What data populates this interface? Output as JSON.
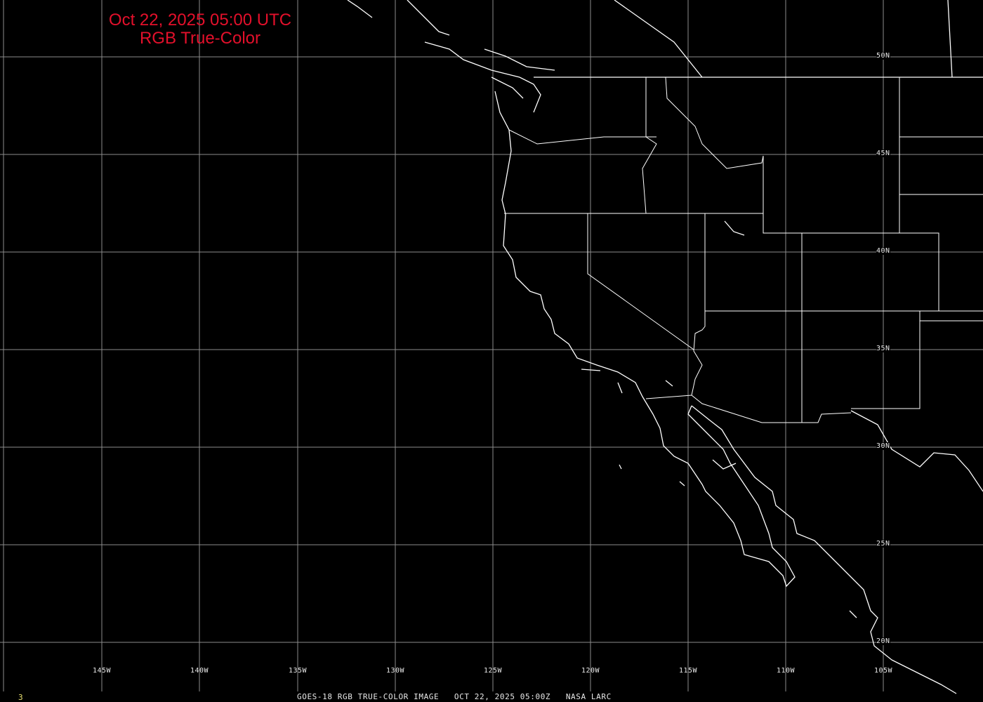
{
  "title": {
    "line1": "Oct 22, 2025 05:00 UTC",
    "line2": "RGB True-Color",
    "color": "#e3102b"
  },
  "longitude_labels": [
    "145W",
    "140W",
    "135W",
    "130W",
    "125W",
    "120W",
    "115W",
    "110W",
    "105W"
  ],
  "latitude_labels": [
    "50N",
    "45N",
    "40N",
    "35N",
    "30N",
    "25N",
    "20N"
  ],
  "caption": {
    "frame_number": "3",
    "satellite": "GOES-18 RGB TRUE-COLOR IMAGE",
    "datetime": "OCT 22, 2025 05:00Z",
    "source": "NASA LARC"
  },
  "colors": {
    "background": "#000000",
    "grid": "#8c8c8c",
    "boundaries": "#ffffff"
  }
}
